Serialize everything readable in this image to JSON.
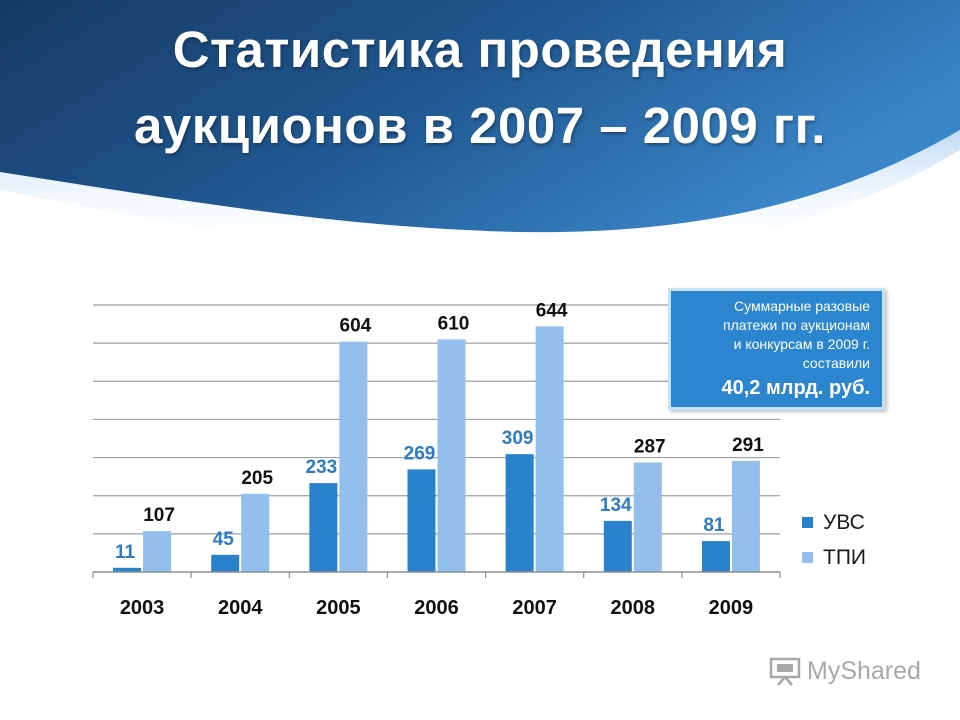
{
  "title": {
    "line1": "Статистика проведения",
    "line2": "аукционов в 2007 – 2009 гг."
  },
  "colors": {
    "header_dark": "#16406b",
    "header_mid": "#2a6fae",
    "series_uvs": "#2a82cc",
    "series_tpi": "#93bfec",
    "label_uvs": "#2e7cc4",
    "label_tpi": "#111111",
    "callout_bg": "#2b86cf"
  },
  "chart_data": {
    "type": "bar",
    "categories": [
      "2003",
      "2004",
      "2005",
      "2006",
      "2007",
      "2008",
      "2009"
    ],
    "series": [
      {
        "name": "УВС",
        "values": [
          11,
          45,
          233,
          269,
          309,
          134,
          81
        ]
      },
      {
        "name": "ТПИ",
        "values": [
          107,
          205,
          604,
          610,
          644,
          287,
          291
        ]
      }
    ],
    "ylim": [
      0,
      700
    ],
    "grid": true,
    "legend": "right"
  },
  "callout": {
    "text": "Суммарные разовые\nплатежи по аукционам\nи конкурсам в 2009 г.\nсоставили",
    "amount": "40,2 млрд. руб."
  },
  "watermark": {
    "text": "MyShared",
    "icon": "presentation-board-icon"
  }
}
